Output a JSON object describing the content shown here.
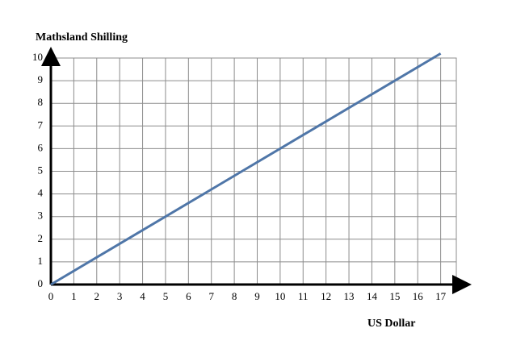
{
  "chart_data": {
    "type": "line",
    "x_label": "US Dollar",
    "y_label": "Mathsland Shilling",
    "x": [
      0,
      17
    ],
    "values": [
      0,
      10.2
    ],
    "color": "#4f76a8",
    "xlim": [
      0,
      18
    ],
    "ylim": [
      0,
      10
    ],
    "xticks": [
      0,
      1,
      2,
      3,
      4,
      5,
      6,
      7,
      8,
      9,
      10,
      11,
      12,
      13,
      14,
      15,
      16,
      17
    ],
    "yticks": [
      0,
      1,
      2,
      3,
      4,
      5,
      6,
      7,
      8,
      9,
      10
    ],
    "grid": true
  }
}
